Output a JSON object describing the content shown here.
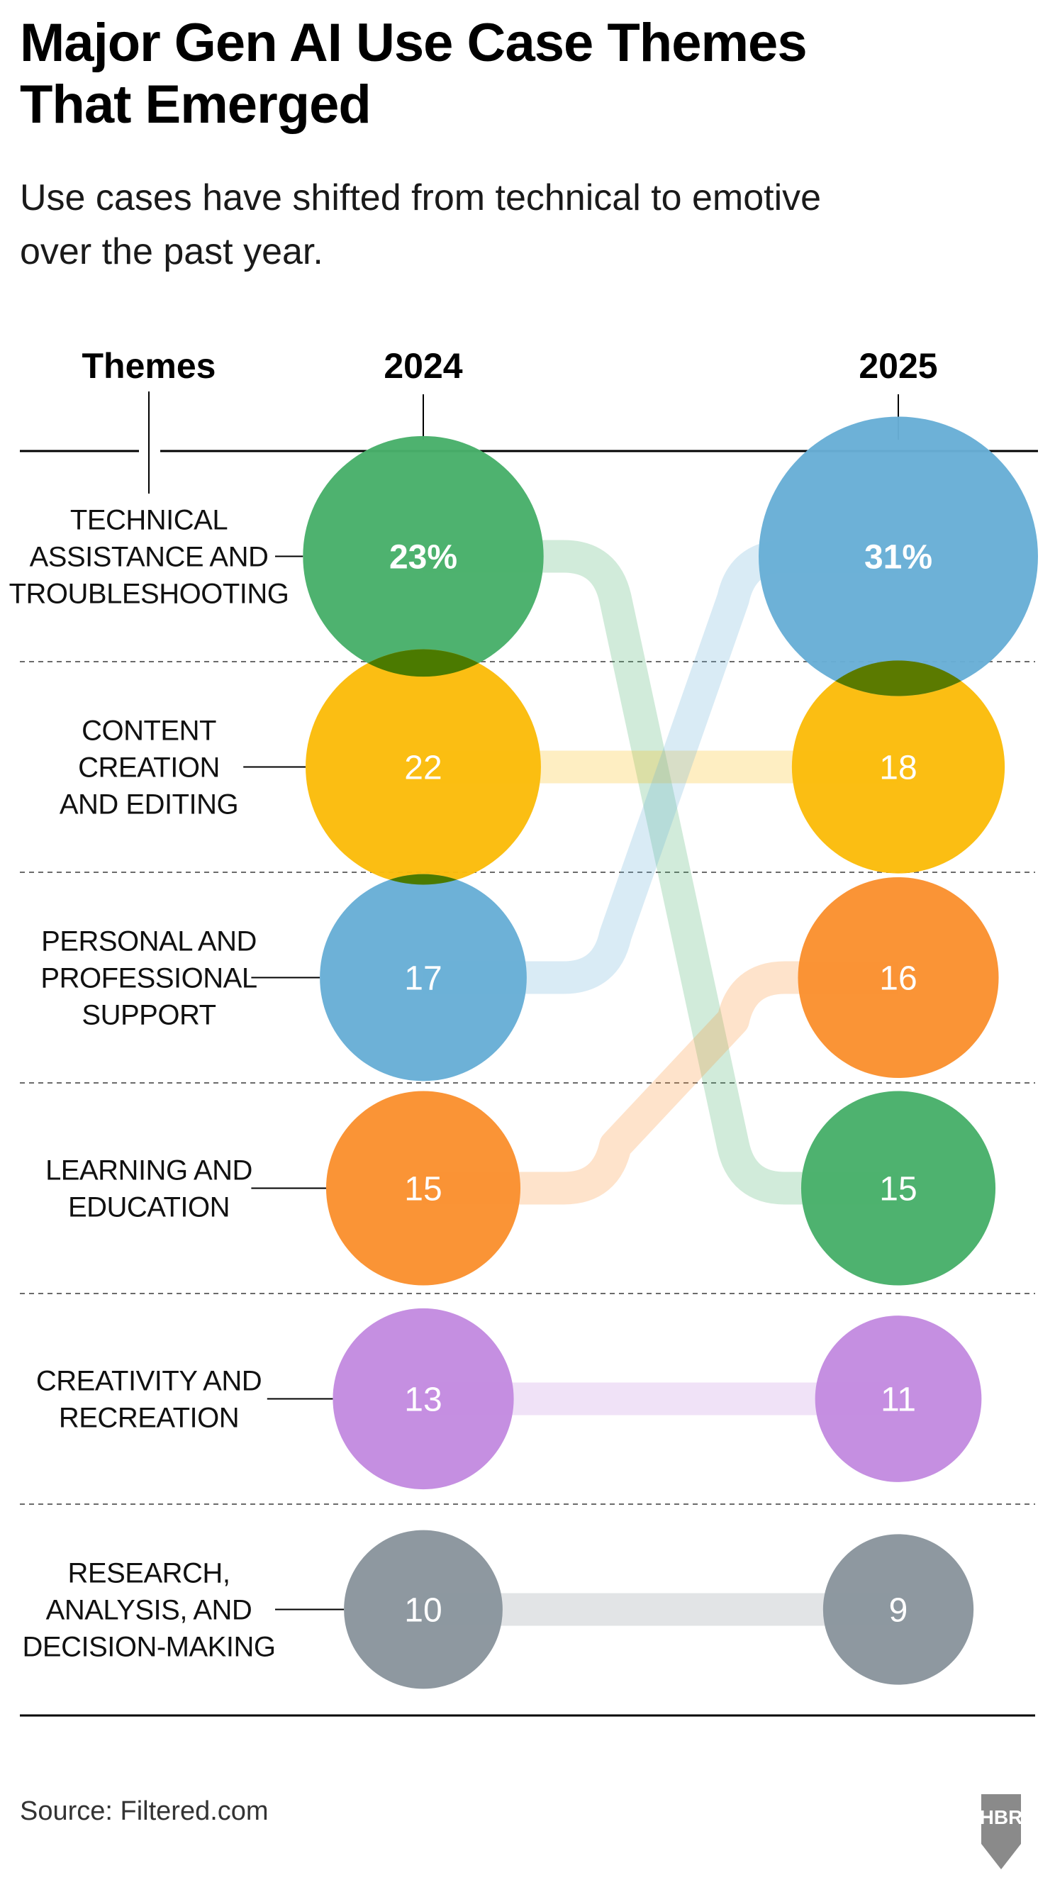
{
  "chart_data": {
    "type": "bump",
    "title": "Major Gen AI Use Case Themes That Emerged",
    "subtitle": "Use cases have shifted from technical to emotive over the past year.",
    "column_headers": {
      "themes": "Themes",
      "year1": "2024",
      "year2": "2025"
    },
    "value_unit": "%",
    "themes": [
      {
        "name": "TECHNICAL ASSISTANCE AND TROUBLESHOOTING",
        "label_lines": [
          "TECHNICAL",
          "ASSISTANCE AND",
          "TROUBLESHOOTING"
        ],
        "color": "#48AF6A",
        "label_2024": "23%",
        "label_2025": "15",
        "value_2024": 23,
        "value_2025": 15,
        "rank_2024": 1,
        "rank_2025": 4
      },
      {
        "name": "CONTENT CREATION AND EDITING",
        "label_lines": [
          "CONTENT",
          "CREATION",
          "AND EDITING"
        ],
        "color": "#FBBC0B",
        "label_2024": "22",
        "label_2025": "18",
        "value_2024": 22,
        "value_2025": 18,
        "rank_2024": 2,
        "rank_2025": 2
      },
      {
        "name": "PERSONAL AND PROFESSIONAL SUPPORT",
        "label_lines": [
          "PERSONAL AND",
          "PROFESSIONAL",
          "SUPPORT"
        ],
        "color": "#68AED6",
        "label_2024": "17",
        "label_2025": "31%",
        "value_2024": 17,
        "value_2025": 31,
        "rank_2024": 3,
        "rank_2025": 1
      },
      {
        "name": "LEARNING AND EDUCATION",
        "label_lines": [
          "LEARNING AND",
          "EDUCATION"
        ],
        "color": "#FA9130",
        "label_2024": "15",
        "label_2025": "16",
        "value_2024": 15,
        "value_2025": 16,
        "rank_2024": 4,
        "rank_2025": 3
      },
      {
        "name": "CREATIVITY AND RECREATION",
        "label_lines": [
          "CREATIVITY AND",
          "RECREATION"
        ],
        "color": "#C38BE0",
        "label_2024": "13",
        "label_2025": "11",
        "value_2024": 13,
        "value_2025": 11,
        "rank_2024": 5,
        "rank_2025": 5
      },
      {
        "name": "RESEARCH, ANALYSIS, AND DECISION-MAKING",
        "label_lines": [
          "RESEARCH,",
          "ANALYSIS, AND",
          "DECISION-MAKING"
        ],
        "color": "#8A959D",
        "label_2024": "10",
        "label_2025": "9",
        "value_2024": 10,
        "value_2025": 9,
        "rank_2024": 6,
        "rank_2025": 6
      }
    ],
    "source": "Source: Filtered.com",
    "logo": "HBR"
  }
}
